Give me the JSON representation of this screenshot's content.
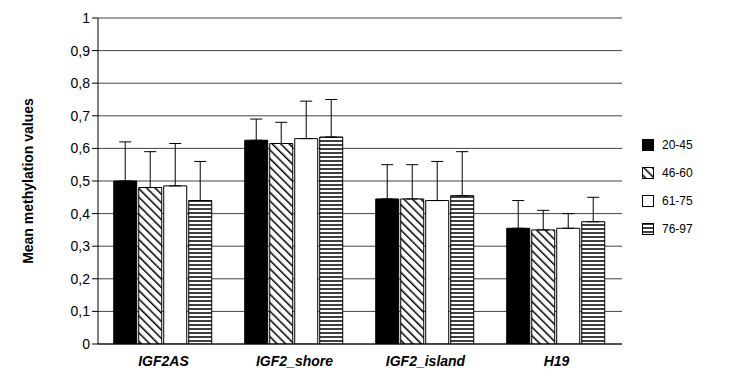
{
  "chart_data": {
    "type": "bar",
    "y_label": "Mean methylation values",
    "categories": [
      "IGF2AS",
      "IGF2_shore",
      "IGF2_island",
      "H19"
    ],
    "series": [
      {
        "name": "20-45",
        "color": "#000000",
        "values": [
          0.5,
          0.625,
          0.445,
          0.355
        ],
        "errors": [
          0.12,
          0.065,
          0.105,
          0.085
        ]
      },
      {
        "name": "46-60",
        "color": "#000000",
        "values": [
          0.48,
          0.615,
          0.445,
          0.35
        ],
        "errors": [
          0.11,
          0.065,
          0.105,
          0.06
        ]
      },
      {
        "name": "61-75",
        "color": "#ffffff",
        "values": [
          0.485,
          0.63,
          0.44,
          0.355
        ],
        "errors": [
          0.13,
          0.115,
          0.12,
          0.045
        ]
      },
      {
        "name": "76-97",
        "color": "#000000",
        "values": [
          0.44,
          0.635,
          0.455,
          0.375
        ],
        "errors": [
          0.12,
          0.115,
          0.135,
          0.075
        ]
      }
    ],
    "ylim": [
      0,
      1
    ],
    "yticks": [
      0,
      {
        "value": 0.1,
        "label": "0,1"
      },
      {
        "value": 0.2,
        "label": "0,2"
      },
      {
        "value": 0.3,
        "label": "0,3"
      },
      {
        "value": 0.4,
        "label": "0,4"
      },
      {
        "value": 0.5,
        "label": "0,5"
      },
      {
        "value": 0.6,
        "label": "0,6"
      },
      {
        "value": 0.7,
        "label": "0,7"
      },
      {
        "value": 0.8,
        "label": "0,8"
      },
      {
        "value": 0.9,
        "label": "0,9"
      },
      1
    ],
    "grid": true,
    "legend": "right"
  }
}
